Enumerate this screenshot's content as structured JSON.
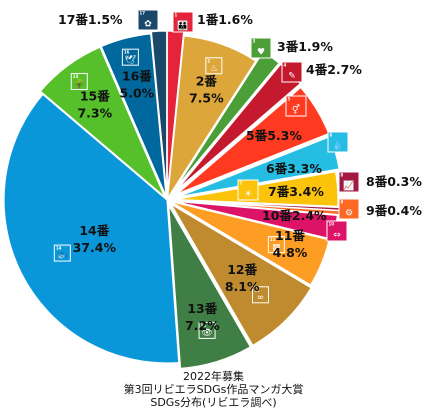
{
  "chart_data": {
    "type": "pie",
    "start_angle_deg": 0,
    "direction": "clockwise",
    "slices": [
      {
        "goal": 1,
        "label": "1番",
        "value": 1.6,
        "value_label": "1.6%",
        "color": "#e5243b",
        "icon": "poverty-icon",
        "icon_glyph": "👪"
      },
      {
        "goal": 2,
        "label": "2番",
        "value": 7.5,
        "value_label": "7.5%",
        "color": "#dda63a",
        "icon": "hunger-icon",
        "icon_glyph": "♨"
      },
      {
        "goal": 3,
        "label": "3番",
        "value": 1.9,
        "value_label": "1.9%",
        "color": "#4c9f38",
        "icon": "health-icon",
        "icon_glyph": "♥"
      },
      {
        "goal": 4,
        "label": "4番",
        "value": 2.7,
        "value_label": "2.7%",
        "color": "#c5192d",
        "icon": "education-icon",
        "icon_glyph": "✎"
      },
      {
        "goal": 5,
        "label": "5番",
        "value": 5.3,
        "value_label": "5.3%",
        "color": "#ff3a21",
        "icon": "gender-equality-icon",
        "icon_glyph": "⚥"
      },
      {
        "goal": 6,
        "label": "6番",
        "value": 3.3,
        "value_label": "3.3%",
        "color": "#26bde2",
        "icon": "water-icon",
        "icon_glyph": "💧"
      },
      {
        "goal": 7,
        "label": "7番",
        "value": 3.4,
        "value_label": "3.4%",
        "color": "#fcc30b",
        "icon": "energy-icon",
        "icon_glyph": "☀"
      },
      {
        "goal": 8,
        "label": "8番",
        "value": 0.3,
        "value_label": "0.3%",
        "color": "#a21942",
        "icon": "economic-growth-icon",
        "icon_glyph": "📈"
      },
      {
        "goal": 9,
        "label": "9番",
        "value": 0.4,
        "value_label": "0.4%",
        "color": "#fd6925",
        "icon": "industry-icon",
        "icon_glyph": "⚙"
      },
      {
        "goal": 10,
        "label": "10番",
        "value": 2.4,
        "value_label": "2.4%",
        "color": "#dd1367",
        "icon": "reduced-inequality-icon",
        "icon_glyph": "⇔"
      },
      {
        "goal": 11,
        "label": "11番",
        "value": 4.8,
        "value_label": "4.8%",
        "color": "#fd9d24",
        "icon": "cities-icon",
        "icon_glyph": "▦"
      },
      {
        "goal": 12,
        "label": "12番",
        "value": 8.1,
        "value_label": "8.1%",
        "color": "#bf8b2e",
        "icon": "consumption-icon",
        "icon_glyph": "∞"
      },
      {
        "goal": 13,
        "label": "13番",
        "value": 7.2,
        "value_label": "7.2%",
        "color": "#3f7e44",
        "icon": "climate-icon",
        "icon_glyph": "👁"
      },
      {
        "goal": 14,
        "label": "14番",
        "value": 37.4,
        "value_label": "37.4%",
        "color": "#0a97d9",
        "icon": "life-below-water-icon",
        "icon_glyph": "🐟"
      },
      {
        "goal": 15,
        "label": "15番",
        "value": 7.3,
        "value_label": "7.3%",
        "color": "#56c02b",
        "icon": "life-on-land-icon",
        "icon_glyph": "🌳"
      },
      {
        "goal": 16,
        "label": "16番",
        "value": 5.0,
        "value_label": "5.0%",
        "color": "#00689d",
        "icon": "peace-icon",
        "icon_glyph": "🕊"
      },
      {
        "goal": 17,
        "label": "17番",
        "value": 1.5,
        "value_label": "1.5%",
        "color": "#19486a",
        "icon": "partnerships-icon",
        "icon_glyph": "✿"
      }
    ]
  },
  "caption": {
    "line1": "2022年募集",
    "line2": "第3回リビエラSDGs作品マンガ大賞",
    "line3": "SDGs分布(リビエラ調べ)"
  }
}
